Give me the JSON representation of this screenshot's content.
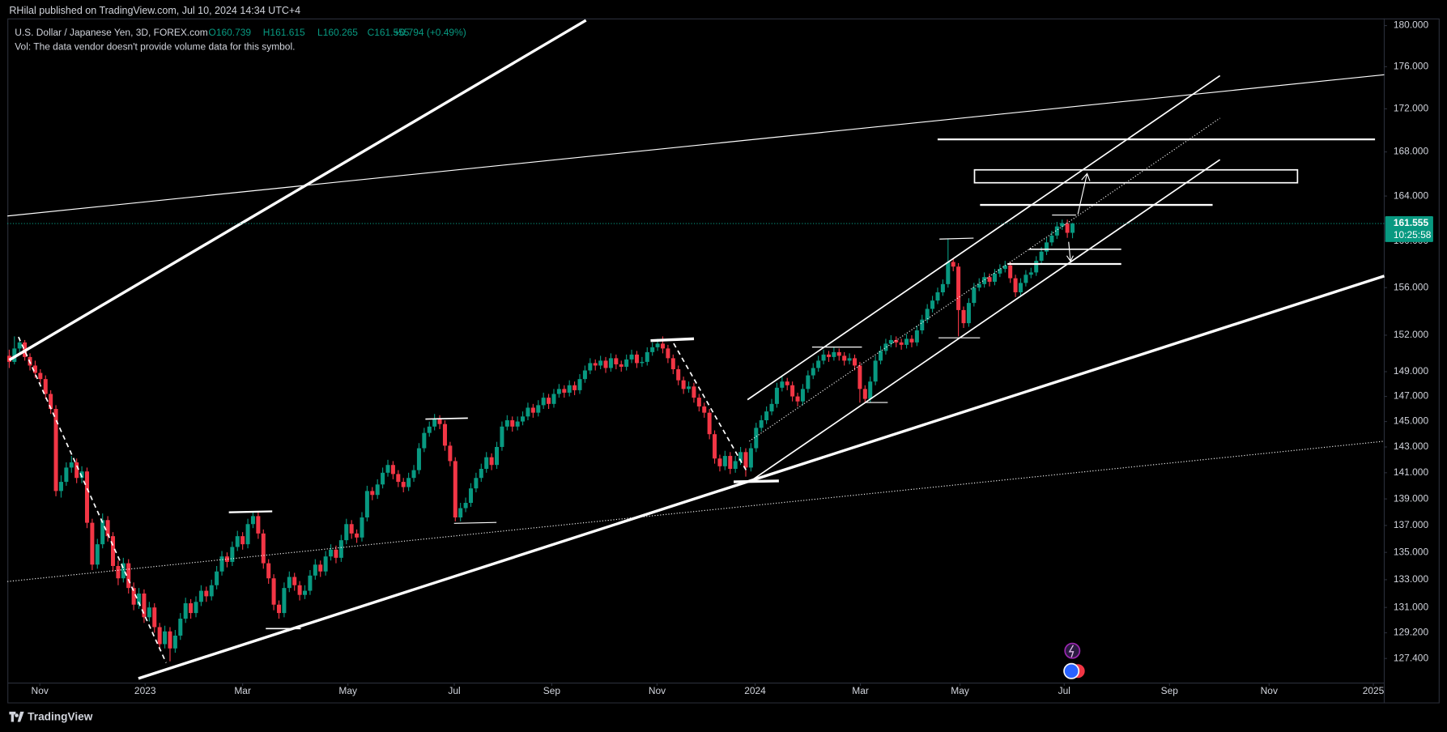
{
  "chart_data": {
    "type": "candlestick",
    "publisher": "RHilal published on TradingView.com, Jul 10, 2024 14:34 UTC+4",
    "title": "U.S. Dollar / Japanese Yen, 3D, FOREX.com",
    "ohlc_legend": [
      "O160.739",
      "H161.615",
      "L160.265",
      "C161.555",
      "+0.794 (+0.49%)"
    ],
    "note": "Vol: The data vendor doesn't provide volume data for this symbol.",
    "brand": "TradingView",
    "log_scale": true,
    "grid": false,
    "up_color": "#089981",
    "down_color": "#f23645",
    "last_price": 161.555,
    "countdown": "10:25:58",
    "ylim": [
      125.7,
      180.7
    ],
    "yticks": [
      {
        "value": 127.4,
        "label": "127.400"
      },
      {
        "value": 129.2,
        "label": "129.200"
      },
      {
        "value": 131,
        "label": "131.000"
      },
      {
        "value": 133,
        "label": "133.000"
      },
      {
        "value": 135,
        "label": "135.000"
      },
      {
        "value": 137,
        "label": "137.000"
      },
      {
        "value": 139,
        "label": "139.000"
      },
      {
        "value": 141,
        "label": "141.000"
      },
      {
        "value": 143,
        "label": "143.000"
      },
      {
        "value": 145,
        "label": "145.000"
      },
      {
        "value": 147,
        "label": "147.000"
      },
      {
        "value": 149,
        "label": "149.000"
      },
      {
        "value": 152,
        "label": "152.000"
      },
      {
        "value": 156,
        "label": "156.000"
      },
      {
        "value": 160,
        "label": "160.000"
      },
      {
        "value": 164,
        "label": "164.000"
      },
      {
        "value": 168,
        "label": "168.000"
      },
      {
        "value": 172,
        "label": "172.000"
      },
      {
        "value": 176,
        "label": "176.000"
      },
      {
        "value": 180,
        "label": "180.000"
      }
    ],
    "xlim": [
      -1.78,
      265.1
    ],
    "xticks": [
      {
        "value": 5.9,
        "label": "Nov"
      },
      {
        "value": 26.2,
        "label": "2023"
      },
      {
        "value": 45,
        "label": "Mar"
      },
      {
        "value": 65.3,
        "label": "May"
      },
      {
        "value": 85.8,
        "label": "Jul"
      },
      {
        "value": 104.6,
        "label": "Sep"
      },
      {
        "value": 124.9,
        "label": "Nov"
      },
      {
        "value": 143.8,
        "label": "2024"
      },
      {
        "value": 164.1,
        "label": "Mar"
      },
      {
        "value": 183.3,
        "label": "May"
      },
      {
        "value": 203.4,
        "label": "Jul"
      },
      {
        "value": 223.7,
        "label": "Sep"
      },
      {
        "value": 242.9,
        "label": "Nov"
      },
      {
        "value": 263,
        "label": "2025"
      }
    ],
    "ohlc": [
      [
        150.3,
        150.8,
        149.3,
        149.8
      ],
      [
        149.8,
        151.9,
        149.6,
        150.9
      ],
      [
        150.9,
        151.8,
        150.6,
        151.4
      ],
      [
        151.4,
        151.6,
        149.9,
        150.2
      ],
      [
        150.2,
        150.5,
        149.1,
        149.5
      ],
      [
        149.5,
        149.9,
        148.5,
        148.9
      ],
      [
        148.9,
        149.2,
        148.0,
        148.4
      ],
      [
        148.4,
        148.7,
        146.8,
        147.2
      ],
      [
        147.2,
        147.5,
        145.6,
        146.0
      ],
      [
        146.0,
        146.3,
        139.2,
        139.6
      ],
      [
        139.6,
        140.8,
        139.1,
        140.3
      ],
      [
        140.3,
        141.8,
        140.0,
        141.4
      ],
      [
        141.4,
        142.3,
        141.0,
        141.8
      ],
      [
        141.8,
        142.1,
        140.2,
        140.6
      ],
      [
        140.6,
        141.5,
        140.2,
        141.1
      ],
      [
        141.1,
        141.4,
        136.8,
        137.2
      ],
      [
        137.2,
        137.5,
        133.7,
        134.1
      ],
      [
        134.1,
        136.0,
        133.8,
        135.6
      ],
      [
        135.6,
        137.9,
        135.3,
        137.4
      ],
      [
        137.4,
        137.7,
        135.8,
        136.2
      ],
      [
        136.2,
        136.5,
        133.6,
        134.0
      ],
      [
        134.0,
        134.4,
        132.6,
        133.1
      ],
      [
        133.1,
        134.6,
        132.8,
        134.2
      ],
      [
        134.2,
        134.5,
        132.0,
        132.4
      ],
      [
        132.4,
        132.8,
        130.8,
        131.2
      ],
      [
        131.2,
        132.4,
        130.9,
        132.0
      ],
      [
        132.0,
        132.3,
        129.9,
        130.3
      ],
      [
        130.3,
        131.4,
        130.0,
        131.0
      ],
      [
        131.0,
        131.3,
        129.2,
        129.6
      ],
      [
        129.6,
        129.9,
        128.0,
        128.4
      ],
      [
        128.4,
        129.7,
        128.1,
        129.3
      ],
      [
        129.3,
        129.6,
        127.2,
        128.1
      ],
      [
        128.1,
        129.4,
        127.8,
        129.0
      ],
      [
        129.0,
        130.6,
        128.7,
        130.2
      ],
      [
        130.2,
        131.7,
        129.9,
        131.3
      ],
      [
        131.3,
        131.6,
        130.2,
        130.6
      ],
      [
        130.6,
        131.8,
        130.3,
        131.4
      ],
      [
        131.4,
        132.6,
        131.1,
        132.2
      ],
      [
        132.2,
        132.5,
        131.4,
        131.8
      ],
      [
        131.8,
        133.0,
        131.5,
        132.6
      ],
      [
        132.6,
        134.0,
        132.3,
        133.6
      ],
      [
        133.6,
        135.1,
        133.3,
        134.7
      ],
      [
        134.7,
        135.0,
        133.9,
        134.3
      ],
      [
        134.3,
        135.8,
        134.0,
        135.4
      ],
      [
        135.4,
        136.6,
        135.1,
        136.2
      ],
      [
        136.2,
        136.5,
        135.2,
        135.6
      ],
      [
        135.6,
        137.5,
        135.3,
        137.1
      ],
      [
        137.1,
        138.0,
        136.8,
        137.7
      ],
      [
        137.7,
        138.0,
        136.0,
        136.4
      ],
      [
        136.4,
        136.7,
        133.8,
        134.2
      ],
      [
        134.2,
        134.5,
        132.7,
        133.1
      ],
      [
        133.1,
        133.4,
        130.8,
        131.2
      ],
      [
        131.2,
        131.5,
        130.2,
        130.6
      ],
      [
        130.6,
        132.8,
        130.3,
        132.4
      ],
      [
        132.4,
        133.6,
        132.1,
        133.2
      ],
      [
        133.2,
        133.5,
        132.2,
        132.6
      ],
      [
        132.6,
        132.9,
        131.5,
        131.9
      ],
      [
        131.9,
        132.6,
        131.6,
        132.2
      ],
      [
        132.2,
        133.7,
        131.9,
        133.3
      ],
      [
        133.3,
        134.5,
        133.0,
        134.1
      ],
      [
        134.1,
        134.4,
        133.2,
        133.6
      ],
      [
        133.6,
        135.1,
        133.3,
        134.7
      ],
      [
        134.7,
        135.6,
        134.4,
        135.2
      ],
      [
        135.2,
        135.5,
        134.2,
        134.6
      ],
      [
        134.6,
        136.3,
        134.3,
        135.9
      ],
      [
        135.9,
        137.5,
        135.6,
        137.1
      ],
      [
        137.1,
        137.4,
        136.0,
        136.4
      ],
      [
        136.4,
        136.7,
        135.7,
        136.1
      ],
      [
        136.1,
        138.0,
        135.8,
        137.6
      ],
      [
        137.6,
        140.0,
        137.3,
        139.6
      ],
      [
        139.6,
        139.9,
        138.9,
        139.3
      ],
      [
        139.3,
        140.5,
        139.0,
        140.1
      ],
      [
        140.1,
        141.4,
        139.8,
        141.0
      ],
      [
        141.0,
        142.0,
        140.7,
        141.6
      ],
      [
        141.6,
        141.9,
        140.5,
        140.9
      ],
      [
        140.9,
        141.2,
        139.9,
        140.3
      ],
      [
        140.3,
        140.6,
        139.5,
        139.9
      ],
      [
        139.9,
        141.0,
        139.6,
        140.6
      ],
      [
        140.6,
        141.6,
        140.3,
        141.2
      ],
      [
        141.2,
        143.3,
        140.9,
        142.9
      ],
      [
        142.9,
        144.5,
        142.6,
        144.1
      ],
      [
        144.1,
        145.0,
        143.8,
        144.6
      ],
      [
        144.6,
        145.6,
        144.3,
        145.2
      ],
      [
        145.2,
        145.5,
        144.4,
        144.8
      ],
      [
        144.8,
        145.1,
        142.7,
        143.1
      ],
      [
        143.1,
        143.4,
        141.5,
        141.9
      ],
      [
        141.9,
        142.2,
        137.3,
        137.6
      ],
      [
        137.6,
        138.7,
        137.3,
        138.3
      ],
      [
        138.3,
        139.1,
        138.0,
        138.7
      ],
      [
        138.7,
        140.2,
        138.4,
        139.8
      ],
      [
        139.8,
        141.0,
        139.5,
        140.6
      ],
      [
        140.6,
        141.7,
        140.3,
        141.3
      ],
      [
        141.3,
        142.6,
        141.0,
        142.2
      ],
      [
        142.2,
        142.5,
        141.2,
        141.6
      ],
      [
        141.6,
        143.4,
        141.3,
        143.0
      ],
      [
        143.0,
        145.0,
        142.7,
        144.6
      ],
      [
        144.6,
        145.5,
        144.3,
        145.1
      ],
      [
        145.1,
        145.4,
        144.2,
        144.6
      ],
      [
        144.6,
        145.4,
        144.3,
        145.0
      ],
      [
        145.0,
        145.8,
        144.7,
        145.4
      ],
      [
        145.4,
        146.5,
        145.1,
        146.1
      ],
      [
        146.1,
        146.4,
        145.3,
        145.7
      ],
      [
        145.7,
        146.7,
        145.4,
        146.3
      ],
      [
        146.3,
        147.3,
        146.0,
        146.9
      ],
      [
        146.9,
        147.2,
        146.0,
        146.4
      ],
      [
        146.4,
        147.6,
        146.1,
        147.2
      ],
      [
        147.2,
        148.0,
        146.9,
        147.6
      ],
      [
        147.6,
        147.9,
        146.9,
        147.3
      ],
      [
        147.3,
        148.3,
        147.0,
        147.9
      ],
      [
        147.9,
        148.2,
        147.1,
        147.5
      ],
      [
        147.5,
        148.8,
        147.2,
        148.4
      ],
      [
        148.4,
        149.5,
        148.1,
        149.1
      ],
      [
        149.1,
        150.1,
        148.8,
        149.7
      ],
      [
        149.7,
        150.0,
        149.1,
        149.5
      ],
      [
        149.5,
        150.3,
        149.2,
        149.9
      ],
      [
        149.9,
        150.2,
        148.9,
        149.3
      ],
      [
        149.3,
        150.5,
        149.0,
        150.1
      ],
      [
        150.1,
        150.4,
        149.2,
        149.6
      ],
      [
        149.6,
        149.9,
        149.0,
        149.4
      ],
      [
        149.4,
        150.4,
        149.1,
        150.0
      ],
      [
        150.0,
        150.8,
        149.7,
        150.4
      ],
      [
        150.4,
        150.7,
        149.3,
        149.7
      ],
      [
        149.7,
        150.2,
        149.4,
        149.8
      ],
      [
        149.8,
        151.0,
        149.5,
        150.6
      ],
      [
        150.6,
        151.4,
        150.3,
        151.0
      ],
      [
        151.0,
        151.7,
        150.7,
        151.3
      ],
      [
        151.3,
        151.9,
        150.5,
        150.9
      ],
      [
        150.9,
        151.2,
        149.7,
        150.1
      ],
      [
        150.1,
        150.4,
        148.8,
        149.2
      ],
      [
        149.2,
        149.5,
        147.9,
        148.3
      ],
      [
        148.3,
        148.6,
        147.2,
        147.6
      ],
      [
        147.6,
        148.2,
        147.3,
        147.8
      ],
      [
        147.8,
        148.1,
        146.5,
        146.9
      ],
      [
        146.9,
        147.2,
        145.8,
        146.2
      ],
      [
        146.2,
        146.5,
        145.3,
        145.7
      ],
      [
        145.7,
        146.0,
        143.6,
        144.0
      ],
      [
        144.0,
        144.3,
        141.7,
        142.1
      ],
      [
        142.1,
        142.4,
        141.1,
        141.5
      ],
      [
        141.5,
        142.7,
        141.2,
        142.3
      ],
      [
        142.3,
        142.6,
        140.9,
        141.3
      ],
      [
        141.3,
        142.3,
        141.0,
        141.9
      ],
      [
        141.9,
        143.0,
        141.6,
        142.6
      ],
      [
        142.6,
        142.9,
        140.7,
        141.4
      ],
      [
        141.4,
        143.3,
        141.1,
        142.9
      ],
      [
        142.9,
        144.9,
        142.6,
        144.5
      ],
      [
        144.5,
        145.5,
        144.2,
        145.1
      ],
      [
        145.1,
        146.2,
        144.8,
        145.8
      ],
      [
        145.8,
        146.8,
        145.5,
        146.4
      ],
      [
        146.4,
        148.1,
        146.1,
        147.7
      ],
      [
        147.7,
        148.6,
        147.4,
        148.2
      ],
      [
        148.2,
        148.5,
        147.5,
        147.9
      ],
      [
        147.9,
        148.2,
        146.6,
        147.0
      ],
      [
        147.0,
        147.3,
        146.2,
        146.6
      ],
      [
        146.6,
        148.0,
        146.3,
        147.6
      ],
      [
        147.6,
        149.1,
        147.3,
        148.7
      ],
      [
        148.7,
        149.7,
        148.4,
        149.3
      ],
      [
        149.3,
        150.3,
        149.0,
        149.9
      ],
      [
        149.9,
        150.8,
        149.6,
        150.4
      ],
      [
        150.4,
        150.7,
        149.8,
        150.2
      ],
      [
        150.2,
        151.0,
        149.9,
        150.6
      ],
      [
        150.6,
        150.9,
        149.9,
        150.3
      ],
      [
        150.3,
        150.6,
        149.5,
        149.9
      ],
      [
        149.9,
        150.5,
        149.6,
        150.1
      ],
      [
        150.1,
        150.4,
        149.1,
        149.5
      ],
      [
        149.5,
        149.8,
        146.5,
        147.6
      ],
      [
        147.6,
        147.9,
        146.5,
        146.8
      ],
      [
        146.8,
        148.6,
        146.5,
        148.2
      ],
      [
        148.2,
        150.3,
        147.9,
        149.9
      ],
      [
        149.9,
        151.1,
        149.6,
        150.7
      ],
      [
        150.7,
        151.7,
        150.4,
        151.3
      ],
      [
        151.3,
        152.0,
        151.0,
        151.6
      ],
      [
        151.6,
        151.9,
        151.0,
        151.4
      ],
      [
        151.4,
        151.7,
        150.8,
        151.2
      ],
      [
        151.2,
        152.1,
        150.9,
        151.7
      ],
      [
        151.7,
        152.0,
        151.0,
        151.4
      ],
      [
        151.4,
        152.8,
        151.1,
        152.4
      ],
      [
        152.4,
        153.7,
        152.1,
        153.3
      ],
      [
        153.3,
        154.6,
        153.0,
        154.2
      ],
      [
        154.2,
        155.3,
        153.9,
        154.9
      ],
      [
        154.9,
        156.0,
        154.6,
        155.6
      ],
      [
        155.6,
        156.7,
        155.3,
        156.3
      ],
      [
        156.3,
        160.2,
        156.0,
        158.2
      ],
      [
        158.2,
        158.5,
        157.4,
        157.8
      ],
      [
        157.8,
        158.1,
        151.9,
        154.1
      ],
      [
        154.1,
        154.4,
        152.6,
        153.0
      ],
      [
        153.0,
        155.1,
        152.7,
        154.7
      ],
      [
        154.7,
        156.4,
        154.4,
        156.0
      ],
      [
        156.0,
        156.8,
        155.7,
        156.3
      ],
      [
        156.3,
        157.3,
        156.0,
        156.9
      ],
      [
        156.9,
        157.2,
        156.1,
        156.5
      ],
      [
        156.5,
        157.6,
        156.2,
        157.2
      ],
      [
        157.2,
        158.0,
        156.9,
        157.6
      ],
      [
        157.6,
        158.3,
        157.3,
        157.9
      ],
      [
        157.9,
        158.2,
        156.4,
        156.8
      ],
      [
        156.8,
        157.1,
        155.2,
        155.6
      ],
      [
        155.6,
        156.8,
        155.3,
        156.4
      ],
      [
        156.4,
        157.5,
        156.1,
        157.1
      ],
      [
        157.1,
        157.7,
        156.8,
        157.3
      ],
      [
        157.3,
        158.7,
        157.0,
        158.3
      ],
      [
        158.3,
        159.5,
        158.0,
        159.1
      ],
      [
        159.1,
        160.3,
        158.8,
        159.9
      ],
      [
        159.9,
        160.9,
        159.6,
        160.5
      ],
      [
        160.5,
        161.7,
        160.2,
        161.3
      ],
      [
        161.3,
        161.9,
        161.0,
        161.6
      ],
      [
        161.6,
        161.9,
        160.3,
        160.739
      ],
      [
        160.739,
        161.615,
        160.265,
        161.555
      ]
    ]
  }
}
